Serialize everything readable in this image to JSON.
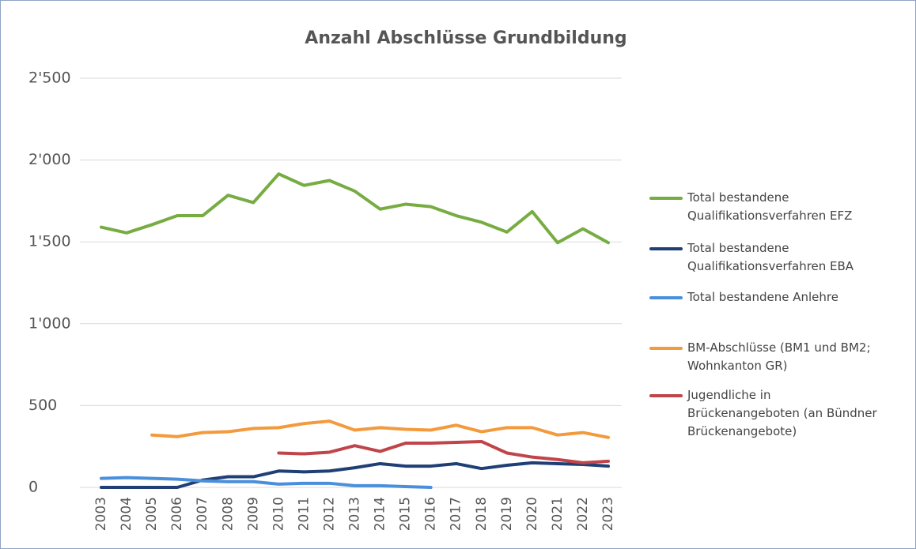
{
  "chart_data": {
    "type": "line",
    "title": "Anzahl Abschlüsse Grundbildung",
    "categories": [
      "2003",
      "2004",
      "2005",
      "2006",
      "2007",
      "2008",
      "2009",
      "2010",
      "2011",
      "2012",
      "2013",
      "2014",
      "2015",
      "2016",
      "2017",
      "2018",
      "2019",
      "2020",
      "2021",
      "2022",
      "2023"
    ],
    "series": [
      {
        "name": "Total bestandene Qualifikationsverfahren EFZ",
        "color": "#77ac43",
        "values": [
          1590,
          1555,
          1605,
          1660,
          1660,
          1785,
          1740,
          1915,
          1845,
          1875,
          1810,
          1700,
          1730,
          1715,
          1660,
          1620,
          1560,
          1685,
          1495,
          1580,
          1495
        ]
      },
      {
        "name": "Total bestandene Qualifikationsverfahren EBA",
        "color": "#1f3f75",
        "values": [
          0,
          0,
          0,
          0,
          45,
          65,
          65,
          100,
          95,
          100,
          120,
          145,
          130,
          130,
          145,
          115,
          135,
          150,
          145,
          140,
          130
        ]
      },
      {
        "name": "Total bestandene Anlehre",
        "color": "#4a8fdc",
        "values": [
          55,
          60,
          55,
          50,
          40,
          35,
          35,
          20,
          25,
          25,
          10,
          10,
          5,
          0,
          null,
          null,
          null,
          null,
          null,
          null,
          null
        ]
      },
      {
        "name": "BM-Abschlüsse (BM1 und BM2; Wohnkanton GR)",
        "color": "#f39a3d",
        "values": [
          null,
          null,
          320,
          310,
          335,
          340,
          360,
          365,
          390,
          405,
          350,
          365,
          355,
          350,
          380,
          340,
          365,
          365,
          320,
          335,
          305
        ]
      },
      {
        "name": "Jugendliche in Brückenangeboten (an Bündner Brückenangebote)",
        "color": "#c0454a",
        "values": [
          null,
          null,
          null,
          null,
          null,
          null,
          null,
          210,
          205,
          215,
          255,
          220,
          270,
          270,
          275,
          280,
          210,
          185,
          170,
          150,
          160
        ]
      }
    ],
    "ylim": [
      0,
      2500
    ],
    "yticks": [
      0,
      500,
      {
        "value": 1000,
        "label": "1'000"
      },
      {
        "value": 1500,
        "label": "1'500"
      },
      {
        "value": 2000,
        "label": "2'000"
      },
      {
        "value": 2500,
        "label": "2'500"
      }
    ],
    "grid": true
  }
}
